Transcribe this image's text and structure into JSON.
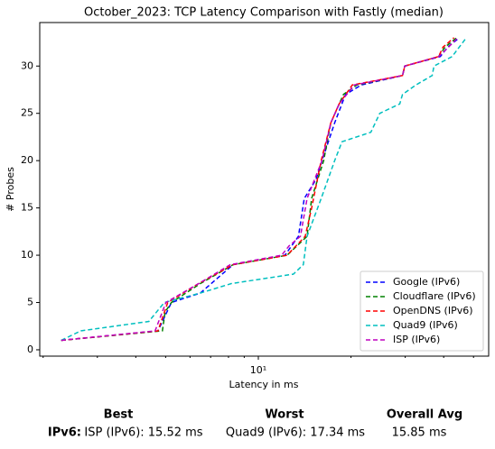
{
  "chart_data": {
    "type": "line",
    "title": "October_2023: TCP Latency Comparison with Fastly (median)",
    "xlabel": "Latency in ms",
    "ylabel": "# Probes",
    "xscale": "log",
    "xlim": [
      1.95,
      56
    ],
    "ylim": [
      -0.67,
      34.6
    ],
    "xticks": [
      {
        "value": 10,
        "label": "10¹"
      }
    ],
    "xminorticks": [
      2,
      3,
      4,
      5,
      6,
      7,
      8,
      9,
      20,
      30,
      40,
      50
    ],
    "yticks": [
      0,
      5,
      10,
      15,
      20,
      25,
      30
    ],
    "legend": "lower right",
    "series": [
      {
        "name": "Google (IPv6)",
        "color": "#0000ff",
        "x": [
          2.29,
          4.72,
          5.22,
          6.48,
          8.28,
          12.2,
          13.5,
          14.1,
          15.4,
          16.1,
          17.7,
          19.2,
          21.6,
          29.4,
          29.9,
          39.0,
          41.2,
          45.0
        ],
        "values": [
          1,
          2,
          5,
          6,
          9,
          10,
          12,
          16,
          18,
          20,
          24,
          27,
          28,
          29,
          30,
          31,
          32,
          33
        ]
      },
      {
        "name": "Cloudflare (IPv6)",
        "color": "#008000",
        "x": [
          2.29,
          4.88,
          4.98,
          5.22,
          6.48,
          8.28,
          12.4,
          14.4,
          14.9,
          16.3,
          17.2,
          18.9,
          20.9,
          29.4,
          29.9,
          38.5,
          40.4,
          44.1
        ],
        "values": [
          1,
          2,
          4,
          5,
          7,
          9,
          10,
          12,
          16,
          20,
          24,
          27,
          28,
          29,
          30,
          31,
          32,
          33
        ]
      },
      {
        "name": "OpenDNS (IPv6)",
        "color": "#ff0000",
        "x": [
          2.29,
          4.72,
          5.08,
          6.4,
          8.28,
          12.4,
          14.2,
          14.9,
          16.0,
          17.2,
          18.3,
          20.2,
          29.4,
          29.9,
          38.5,
          39.8,
          43.2
        ],
        "values": [
          1,
          2,
          5,
          7,
          9,
          10,
          12,
          15,
          20,
          24,
          26,
          28,
          29,
          30,
          31,
          32,
          33
        ]
      },
      {
        "name": "Quad9 (IPv6)",
        "color": "#00bfbf",
        "x": [
          2.29,
          2.65,
          4.41,
          4.95,
          6.48,
          8.17,
          13.0,
          14.0,
          14.4,
          16.0,
          17.7,
          18.7,
          23.2,
          24.8,
          28.8,
          29.4,
          32.5,
          36.7,
          37.2,
          42.6,
          47.4
        ],
        "values": [
          1,
          2,
          3,
          5,
          6,
          7,
          8,
          9,
          12,
          16,
          20,
          22,
          23,
          25,
          26,
          27,
          28,
          29,
          30,
          31,
          33
        ]
      },
      {
        "name": "ISP (IPv6)",
        "color": "#bf00bf",
        "x": [
          2.29,
          4.62,
          5.01,
          6.4,
          8.11,
          11.9,
          12.6,
          13.7,
          14.4,
          16.1,
          17.2,
          18.3,
          20.5,
          29.4,
          29.9,
          38.5,
          41.5,
          44.4
        ],
        "values": [
          1,
          2,
          5,
          7,
          9,
          10,
          11,
          12,
          16,
          20,
          24,
          26,
          28,
          29,
          30,
          31,
          32,
          33
        ]
      }
    ]
  },
  "summary": {
    "headers": [
      "Best",
      "Worst",
      "Overall Avg"
    ],
    "row": [
      "IPv6:",
      "ISP (IPv6): 15.52 ms",
      "Quad9 (IPv6): 17.34 ms",
      "15.85 ms"
    ]
  }
}
